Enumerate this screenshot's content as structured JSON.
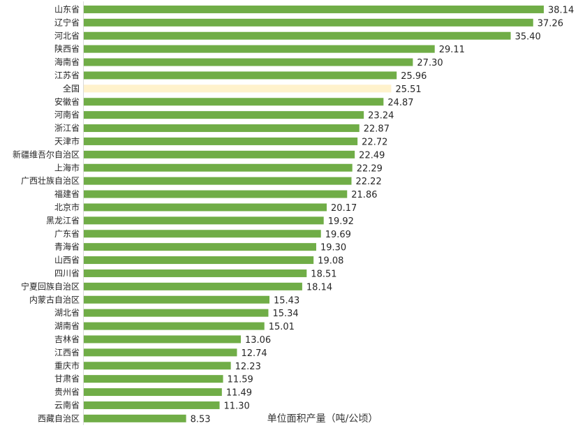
{
  "colors": {
    "bar": "#70AD47",
    "highlight": "#FFF2CC",
    "axis": "#D9D9D9",
    "text": "#262626"
  },
  "chart_data": {
    "type": "bar",
    "orientation": "horizontal",
    "xlabel": "单位面积产量（吨/公顷）",
    "highlight_category": "全国",
    "grid": false,
    "xlim": [
      0,
      40
    ],
    "categories": [
      "山东省",
      "辽宁省",
      "河北省",
      "陕西省",
      "海南省",
      "江苏省",
      "全国",
      "安徽省",
      "河南省",
      "浙江省",
      "天津市",
      "新疆维吾尔自治区",
      "上海市",
      "广西壮族自治区",
      "福建省",
      "北京市",
      "黑龙江省",
      "广东省",
      "青海省",
      "山西省",
      "四川省",
      "宁夏回族自治区",
      "内蒙古自治区",
      "湖北省",
      "湖南省",
      "吉林省",
      "江西省",
      "重庆市",
      "甘肃省",
      "贵州省",
      "云南省",
      "西藏自治区"
    ],
    "values": [
      38.14,
      37.26,
      35.4,
      29.11,
      27.3,
      25.96,
      25.51,
      24.87,
      23.24,
      22.87,
      22.72,
      22.49,
      22.29,
      22.22,
      21.86,
      20.17,
      19.92,
      19.69,
      19.3,
      19.08,
      18.51,
      18.14,
      15.43,
      15.34,
      15.01,
      13.06,
      12.74,
      12.23,
      11.59,
      11.49,
      11.3,
      8.53
    ],
    "value_labels": [
      "38.14",
      "37.26",
      "35.40",
      "29.11",
      "27.30",
      "25.96",
      "25.51",
      "24.87",
      "23.24",
      "22.87",
      "22.72",
      "22.49",
      "22.29",
      "22.22",
      "21.86",
      "20.17",
      "19.92",
      "19.69",
      "19.30",
      "19.08",
      "18.51",
      "18.14",
      "15.43",
      "15.34",
      "15.01",
      "13.06",
      "12.74",
      "12.23",
      "11.59",
      "11.49",
      "11.30",
      "8.53"
    ]
  }
}
